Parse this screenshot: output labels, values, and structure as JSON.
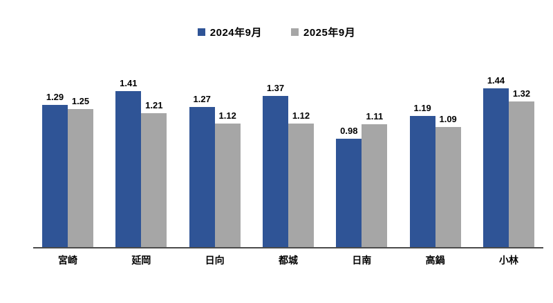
{
  "chart_data": {
    "type": "bar",
    "title": "",
    "categories": [
      "宮崎",
      "延岡",
      "日向",
      "都城",
      "日南",
      "高鍋",
      "小林"
    ],
    "series": [
      {
        "name": "2024年9月",
        "color": "#2F5496",
        "values": [
          1.29,
          1.41,
          1.27,
          1.37,
          0.98,
          1.19,
          1.44
        ]
      },
      {
        "name": "2025年9月",
        "color": "#A6A6A6",
        "values": [
          1.25,
          1.21,
          1.12,
          1.12,
          1.11,
          1.09,
          1.32
        ]
      }
    ],
    "xlabel": "",
    "ylabel": "",
    "ylim": [
      0,
      1.8
    ],
    "grid": false,
    "value_labels": true,
    "value_label_decimals": 2,
    "legend_position": "top-center",
    "axis_color": "#4a4a4a",
    "text_color": "#000000",
    "background_color": "#ffffff"
  }
}
